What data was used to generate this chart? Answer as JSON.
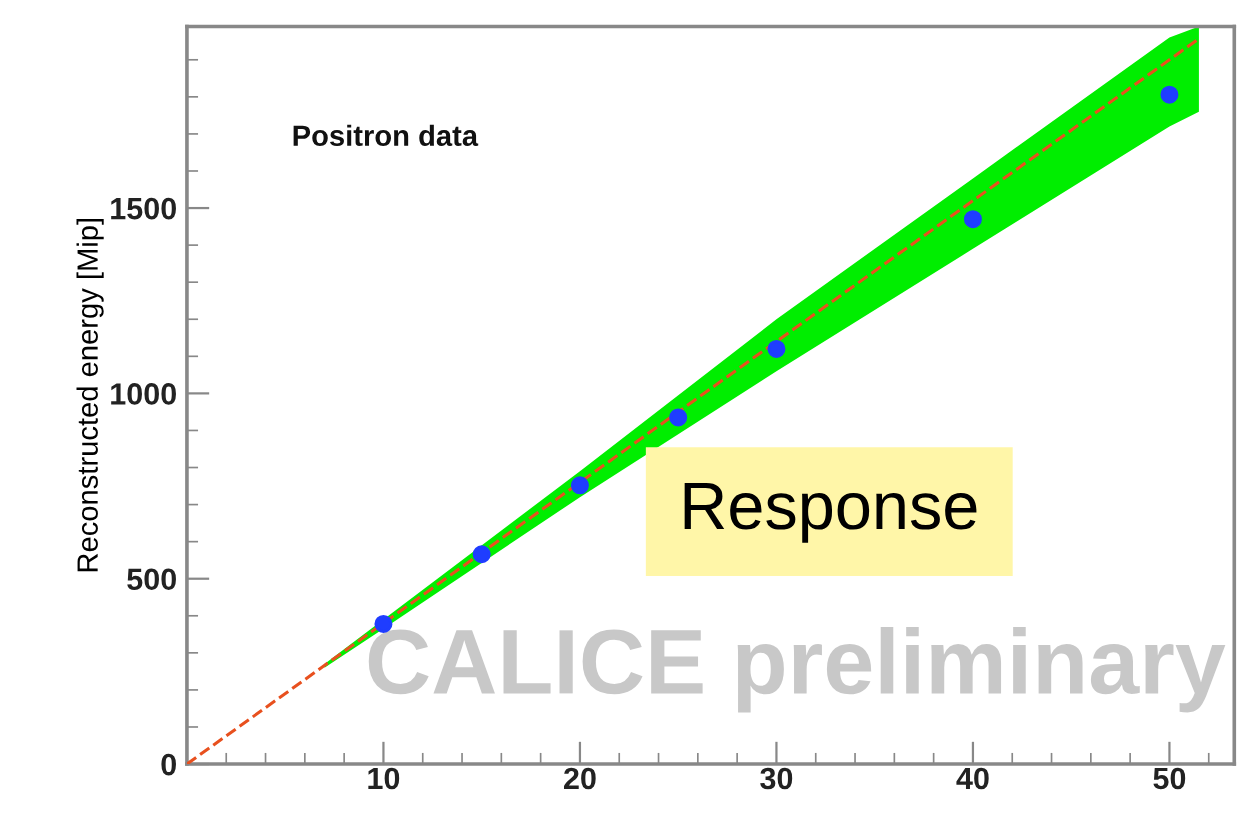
{
  "chart_data": {
    "type": "scatter",
    "ylabel": "Reconstructed energy [Mip]",
    "x": [
      10,
      15,
      20,
      25,
      30,
      40,
      50
    ],
    "series": [
      {
        "color": "#1f3dff",
        "marker": "circle",
        "values": [
          378,
          566,
          752,
          935,
          1120,
          1470,
          1806
        ]
      },
      {
        "type": "line",
        "color": "#00ee00",
        "x": [
          7,
          10,
          20,
          30,
          40,
          50,
          51.5
        ],
        "values": [
          null,
          null,
          null,
          null,
          null,
          null,
          null
        ],
        "lower": [
          260,
          365,
          720,
          1060,
          1390,
          1720,
          1760
        ],
        "upper": [
          270,
          390,
          790,
          1200,
          1580,
          1960,
          1990
        ]
      },
      {
        "type": "line",
        "color": "#e8501e",
        "line_style": "dashed",
        "x": [
          0,
          51.5
        ],
        "values": [
          0,
          1957
        ]
      }
    ],
    "xlim": [
      0,
      53.3
    ],
    "ylim": [
      0,
      1990
    ],
    "xticks": [
      10,
      20,
      30,
      40,
      50
    ],
    "yticks": [
      0,
      500,
      1000,
      1500
    ],
    "grid": false,
    "annotations": [
      "Positron data",
      "Response",
      "CALICE preliminary"
    ]
  }
}
